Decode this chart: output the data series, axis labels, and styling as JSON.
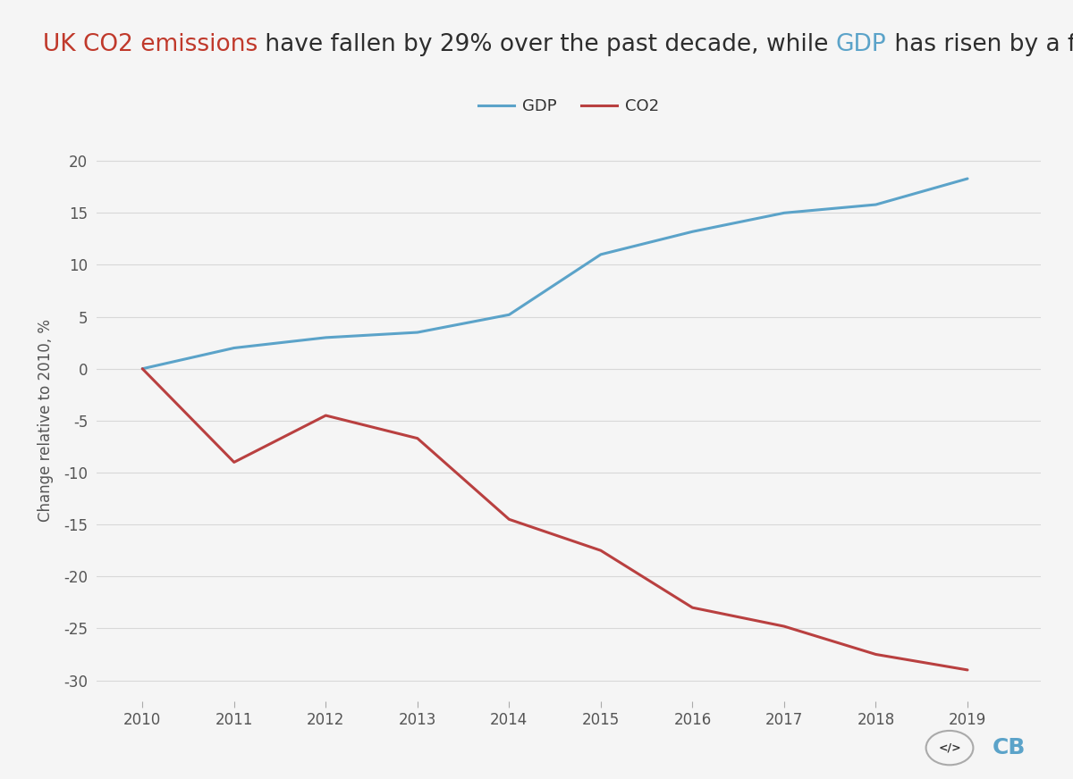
{
  "title_parts": [
    {
      "text": "UK CO2 emissions",
      "color": "#c0392b"
    },
    {
      "text": " have fallen by 29% over the past decade, while ",
      "color": "#2d2d2d"
    },
    {
      "text": "GDP",
      "color": "#5ba3c9"
    },
    {
      "text": " has risen by a fifth",
      "color": "#2d2d2d"
    }
  ],
  "gdp_years": [
    2010,
    2011,
    2012,
    2013,
    2014,
    2015,
    2016,
    2017,
    2018,
    2019
  ],
  "gdp_values": [
    0,
    2.0,
    3.0,
    3.5,
    5.2,
    11.0,
    13.2,
    15.0,
    15.8,
    18.3
  ],
  "co2_years": [
    2010,
    2011,
    2012,
    2013,
    2014,
    2015,
    2016,
    2017,
    2018,
    2019
  ],
  "co2_values": [
    0,
    -9.0,
    -4.5,
    -6.7,
    -14.5,
    -17.5,
    -23.0,
    -24.8,
    -27.5,
    -29.0
  ],
  "gdp_color": "#5ba3c9",
  "co2_color": "#b94040",
  "ylabel": "Change relative to 2010, %",
  "ylim": [
    -32,
    22
  ],
  "yticks": [
    -30,
    -25,
    -20,
    -15,
    -10,
    -5,
    0,
    5,
    10,
    15,
    20
  ],
  "background_color": "#f5f5f5",
  "grid_color": "#d8d8d8",
  "legend_gdp": "GDP",
  "legend_co2": "CO2",
  "title_fontsize": 19,
  "axis_label_fontsize": 12,
  "tick_fontsize": 12
}
